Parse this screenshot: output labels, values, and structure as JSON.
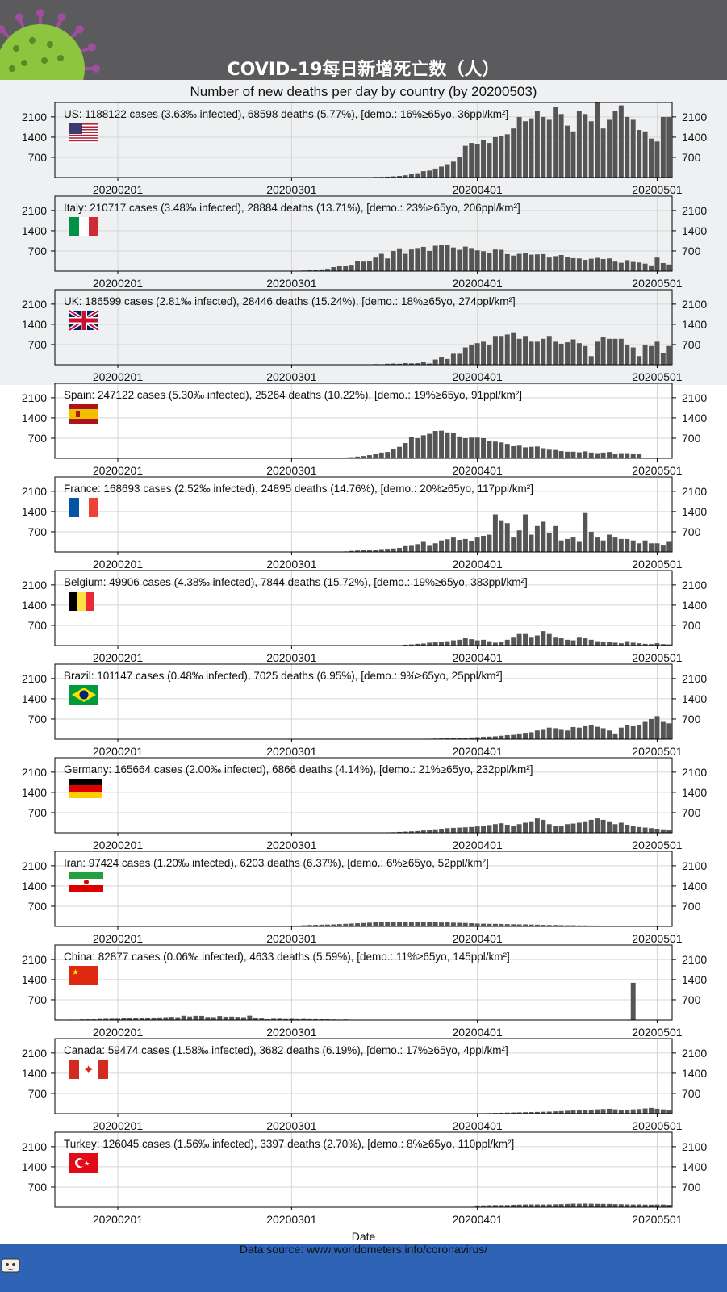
{
  "banner": {
    "title": "COVID-19每日新增死亡数（人）"
  },
  "subtitle": "Number of new deaths per day by country (by 20200503)",
  "xlabel": "Date",
  "footer": {
    "source": "Data source: www.worldometers.info/coronavirus/"
  },
  "colors": {
    "bar": "#555555",
    "banner": "#5b5b5d",
    "footer": "#2f63b5",
    "band": "#eef0f2",
    "virus": "#8cc63f",
    "spike": "#a04da0"
  },
  "chart_data": {
    "type": "bar",
    "x_ticks": [
      "20200201",
      "20200301",
      "20200401",
      "20200501"
    ],
    "x_range": [
      "20200122",
      "20200503"
    ],
    "y_ticks": [
      700,
      1400,
      2100
    ],
    "ylim": [
      0,
      2600
    ],
    "grid": true,
    "panels": [
      {
        "country": "US",
        "label": "US: 1188122 cases (3.63‰ infected), 68598 deaths (5.77%), [demo.: 16%≥65yo, 36ppl/km²]",
        "flag": "us",
        "series_start": "20200301",
        "values": [
          0,
          0,
          1,
          1,
          2,
          2,
          3,
          4,
          4,
          5,
          7,
          10,
          13,
          12,
          20,
          22,
          30,
          40,
          55,
          80,
          120,
          150,
          220,
          240,
          310,
          380,
          460,
          550,
          700,
          1100,
          1200,
          1150,
          1300,
          1200,
          1400,
          1450,
          1500,
          1700,
          2100,
          1950,
          2050,
          2300,
          2100,
          2000,
          2450,
          2200,
          1800,
          1600,
          2300,
          2200,
          1950,
          2600,
          1700,
          2000,
          2300,
          2500,
          2100,
          2000,
          1650,
          1600,
          1350,
          1250,
          2100,
          2100,
          1450,
          2300,
          2000,
          1800,
          1300,
          1200
        ]
      },
      {
        "country": "Italy",
        "label": "Italy: 210717 cases (3.48‰ infected), 28884 deaths (13.71%), [demo.: 23%≥65yo, 206ppl/km²]",
        "flag": "it",
        "series_start": "20200222",
        "values": [
          1,
          2,
          3,
          3,
          3,
          4,
          4,
          5,
          10,
          10,
          20,
          30,
          40,
          60,
          80,
          140,
          170,
          190,
          220,
          350,
          330,
          360,
          470,
          600,
          440,
          700,
          790,
          600,
          750,
          800,
          840,
          700,
          880,
          900,
          920,
          820,
          740,
          850,
          800,
          720,
          690,
          620,
          750,
          740,
          590,
          540,
          600,
          630,
          570,
          580,
          590,
          470,
          520,
          560,
          480,
          450,
          440,
          390,
          430,
          460,
          420,
          440,
          330,
          290,
          380,
          320,
          300,
          260,
          200,
          470,
          280,
          230
        ]
      },
      {
        "country": "UK",
        "label": "UK: 186599 cases (2.81‰ infected), 28446 deaths (15.24%), [demo.: 18%≥65yo, 274ppl/km²]",
        "flag": "gb",
        "series_start": "20200306",
        "values": [
          1,
          0,
          1,
          2,
          1,
          0,
          3,
          10,
          14,
          20,
          16,
          33,
          40,
          33,
          56,
          48,
          54,
          87,
          41,
          180,
          260,
          200,
          380,
          380,
          600,
          700,
          750,
          800,
          700,
          1000,
          1000,
          1050,
          1100,
          900,
          1000,
          800,
          800,
          900,
          1000,
          800,
          730,
          780,
          880,
          750,
          650,
          300,
          800,
          950,
          900,
          900,
          900,
          700,
          600,
          300,
          700,
          650,
          800,
          400,
          650,
          750,
          700,
          450,
          600,
          300
        ]
      },
      {
        "country": "Spain",
        "label": "Spain: 247122 cases (5.30‰ infected), 25264 deaths (10.22%), [demo.: 19%≥65yo, 91ppl/km²]",
        "flag": "es",
        "series_start": "20200303",
        "values": [
          1,
          1,
          2,
          3,
          5,
          10,
          20,
          30,
          40,
          60,
          80,
          110,
          140,
          200,
          220,
          320,
          400,
          530,
          750,
          700,
          800,
          850,
          950,
          960,
          900,
          880,
          760,
          700,
          720,
          720,
          700,
          600,
          580,
          550,
          500,
          420,
          440,
          380,
          400,
          410,
          350,
          300,
          290,
          250,
          230,
          230,
          210,
          240,
          200,
          180,
          200,
          220,
          160,
          180,
          180,
          170,
          150
        ]
      },
      {
        "country": "France",
        "label": "France: 168693 cases (2.52‰ infected), 24895 deaths (14.76%), [demo.: 20%≥65yo, 117ppl/km²]",
        "flag": "fr",
        "series_start": "20200301",
        "values": [
          1,
          1,
          2,
          2,
          3,
          4,
          5,
          10,
          12,
          18,
          36,
          50,
          60,
          70,
          80,
          100,
          110,
          120,
          140,
          230,
          240,
          270,
          350,
          240,
          300,
          400,
          440,
          500,
          420,
          450,
          380,
          500,
          560,
          600,
          1300,
          1100,
          1000,
          500,
          750,
          1300,
          600,
          900,
          1050,
          650,
          900,
          400,
          450,
          500,
          350,
          1350,
          700,
          500,
          400,
          600,
          500,
          450,
          450,
          400,
          300,
          400,
          300,
          300,
          250,
          350,
          250,
          250,
          200,
          150,
          200,
          150,
          100,
          150,
          100
        ]
      },
      {
        "country": "Belgium",
        "label": "Belgium: 49906 cases (4.38‰ infected), 7844 deaths (15.72%), [demo.: 19%≥65yo, 383ppl/km²]",
        "flag": "be",
        "series_start": "20200311",
        "values": [
          1,
          1,
          2,
          3,
          4,
          5,
          6,
          10,
          14,
          30,
          40,
          60,
          70,
          100,
          110,
          120,
          150,
          180,
          200,
          250,
          220,
          180,
          200,
          150,
          100,
          130,
          200,
          300,
          400,
          400,
          300,
          350,
          500,
          400,
          300,
          250,
          200,
          180,
          300,
          250,
          200,
          150,
          120,
          130,
          100,
          80,
          150,
          100,
          80,
          60,
          50,
          80,
          50,
          40,
          60
        ]
      },
      {
        "country": "Brazil",
        "label": "Brazil: 101147 cases (0.48‰ infected), 7025 deaths (6.95%), [demo.: 9%≥65yo, 25ppl/km²]",
        "flag": "br",
        "series_start": "20200317",
        "values": [
          1,
          1,
          3,
          4,
          5,
          7,
          9,
          15,
          22,
          24,
          30,
          40,
          46,
          50,
          60,
          70,
          80,
          90,
          100,
          120,
          140,
          150,
          200,
          220,
          240,
          300,
          350,
          400,
          380,
          350,
          300,
          420,
          400,
          450,
          500,
          430,
          380,
          300,
          200,
          400,
          500,
          450,
          500,
          600,
          700,
          800,
          600,
          550,
          500,
          400,
          400
        ]
      },
      {
        "country": "Germany",
        "label": "Germany: 165664 cases (2.00‰ infected), 6866 deaths (4.14%), [demo.: 21%≥65yo, 232ppl/km²]",
        "flag": "de",
        "series_start": "20200309",
        "values": [
          1,
          1,
          2,
          2,
          3,
          5,
          6,
          10,
          15,
          20,
          30,
          40,
          50,
          60,
          80,
          100,
          120,
          140,
          160,
          170,
          180,
          190,
          200,
          220,
          250,
          270,
          300,
          330,
          280,
          250,
          300,
          350,
          400,
          500,
          450,
          300,
          250,
          250,
          300,
          320,
          350,
          400,
          450,
          500,
          450,
          400,
          300,
          350,
          280,
          250,
          200,
          180,
          160,
          140,
          120,
          100
        ]
      },
      {
        "country": "Iran",
        "label": "Iran: 97424 cases (1.20‰ infected), 6203 deaths (6.37%), [demo.: 6%≥65yo, 52ppl/km²]",
        "flag": "ir",
        "series_start": "20200219",
        "values": [
          2,
          2,
          1,
          2,
          3,
          4,
          5,
          8,
          10,
          15,
          20,
          25,
          30,
          40,
          50,
          55,
          60,
          65,
          70,
          80,
          90,
          100,
          110,
          120,
          130,
          140,
          150,
          150,
          145,
          140,
          145,
          150,
          145,
          140,
          145,
          140,
          135,
          140,
          130,
          125,
          120,
          110,
          100,
          95,
          90,
          90,
          85,
          80,
          75,
          70,
          70,
          65,
          60,
          55,
          50,
          50,
          45,
          40,
          40,
          35,
          35,
          30,
          30,
          28,
          25,
          22,
          20,
          20,
          18,
          15,
          15,
          14,
          13,
          12,
          11,
          10,
          9,
          8,
          7,
          6
        ]
      },
      {
        "country": "China",
        "label": "China: 82877 cases (0.06‰ infected), 4633 deaths (5.59%), [demo.: 11%≥65yo, 145ppl/km²]",
        "flag": "cn",
        "series_start": "20200122",
        "values": [
          17,
          8,
          16,
          15,
          24,
          26,
          26,
          38,
          43,
          46,
          45,
          57,
          64,
          66,
          73,
          73,
          86,
          89,
          97,
          108,
          97,
          146,
          121,
          143,
          142,
          105,
          98,
          136,
          114,
          118,
          109,
          97,
          150,
          71,
          52,
          29,
          44,
          47,
          35,
          42,
          31,
          38,
          31,
          30,
          28,
          27,
          22,
          17,
          22,
          11,
          7,
          13,
          10,
          14,
          13,
          11,
          8,
          3,
          7,
          6,
          9,
          7,
          4,
          6,
          5,
          3,
          5,
          4,
          4,
          1,
          2,
          1,
          3,
          1,
          1,
          1,
          2,
          1,
          1,
          0,
          0,
          0,
          0,
          0,
          0,
          0,
          0,
          0,
          1,
          0,
          0,
          0,
          0,
          0,
          1,
          1,
          1290,
          0,
          0,
          0,
          0,
          0,
          0,
          0
        ]
      },
      {
        "country": "Canada",
        "label": "Canada: 59474 cases (1.58‰ infected), 3682 deaths (6.19%), [demo.: 17%≥65yo, 4ppl/km²]",
        "flag": "ca",
        "series_start": "20200401",
        "values": [
          10,
          15,
          20,
          25,
          30,
          35,
          40,
          45,
          50,
          55,
          60,
          65,
          70,
          80,
          90,
          100,
          110,
          120,
          130,
          140,
          150,
          160,
          170,
          150,
          140,
          130,
          150,
          160,
          180,
          200,
          170,
          150,
          140,
          130,
          120
        ]
      },
      {
        "country": "Turkey",
        "label": "Turkey: 126045 cases (1.56‰ infected), 3397 deaths (2.70%), [demo.: 8%≥65yo, 110ppl/km²]",
        "flag": "tr",
        "series_start": "20200401",
        "values": [
          60,
          63,
          70,
          75,
          73,
          75,
          87,
          92,
          96,
          98,
          97,
          95,
          98,
          102,
          107,
          115,
          125,
          121,
          127,
          123,
          119,
          117,
          115,
          109,
          105,
          99,
          95,
          99,
          92,
          89,
          93,
          95,
          84,
          78
        ]
      }
    ]
  }
}
